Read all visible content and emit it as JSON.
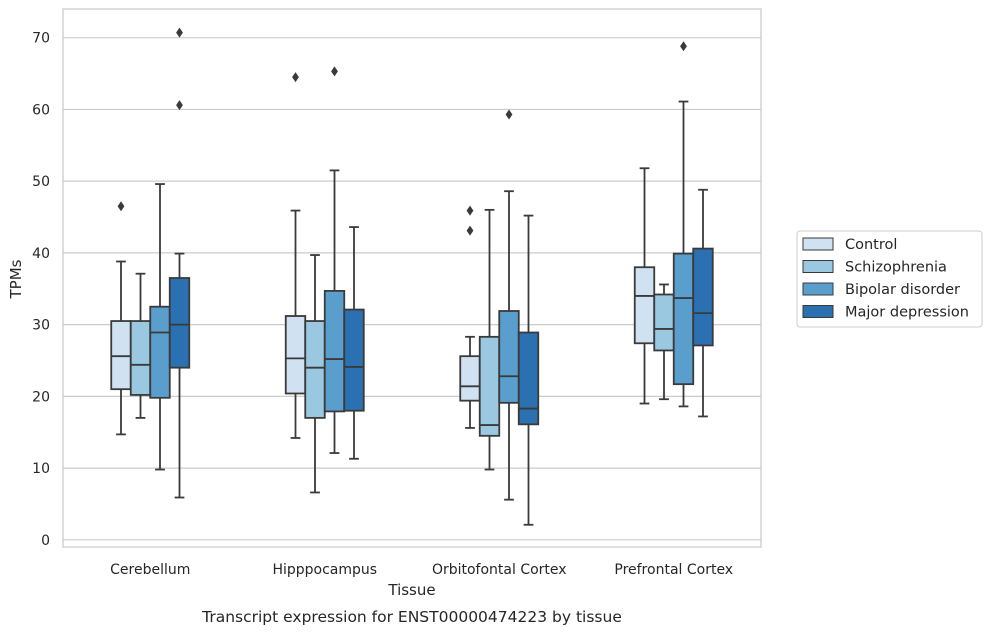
{
  "chart_data": {
    "type": "boxplot",
    "caption": "Transcript expression for ENST00000474223 by tissue",
    "xlabel": "Tissue",
    "ylabel": "TPMs",
    "categories": [
      "Cerebellum",
      "Hipppocampus",
      "Orbitofontal Cortex",
      "Prefrontal Cortex"
    ],
    "ylim": [
      -1,
      74
    ],
    "yticks": [
      0,
      10,
      20,
      30,
      40,
      50,
      60,
      70
    ],
    "grid": "horizontal",
    "legend_position": "right",
    "series": [
      {
        "name": "Control",
        "color": "#d0e2f2",
        "boxes": [
          {
            "whislo": 14.7,
            "q1": 21.0,
            "med": 25.6,
            "q3": 30.5,
            "whishi": 38.8,
            "fliers": [
              46.5
            ]
          },
          {
            "whislo": 14.2,
            "q1": 20.4,
            "med": 25.3,
            "q3": 31.2,
            "whishi": 45.9,
            "fliers": [
              64.5
            ]
          },
          {
            "whislo": 15.6,
            "q1": 19.4,
            "med": 21.4,
            "q3": 25.6,
            "whishi": 28.3,
            "fliers": [
              43.1,
              45.9
            ]
          },
          {
            "whislo": 19.0,
            "q1": 27.4,
            "med": 34.0,
            "q3": 38.0,
            "whishi": 51.8,
            "fliers": []
          }
        ]
      },
      {
        "name": "Schizophrenia",
        "color": "#9ac8e0",
        "boxes": [
          {
            "whislo": 17.0,
            "q1": 20.2,
            "med": 24.4,
            "q3": 30.5,
            "whishi": 37.1,
            "fliers": []
          },
          {
            "whislo": 6.6,
            "q1": 17.0,
            "med": 24.0,
            "q3": 30.5,
            "whishi": 39.7,
            "fliers": []
          },
          {
            "whislo": 9.8,
            "q1": 14.5,
            "med": 16.0,
            "q3": 28.3,
            "whishi": 46.0,
            "fliers": []
          },
          {
            "whislo": 19.6,
            "q1": 26.4,
            "med": 29.4,
            "q3": 34.2,
            "whishi": 35.6,
            "fliers": []
          }
        ]
      },
      {
        "name": "Bipolar disorder",
        "color": "#5a9ecd",
        "boxes": [
          {
            "whislo": 9.8,
            "q1": 19.8,
            "med": 28.9,
            "q3": 32.5,
            "whishi": 49.6,
            "fliers": []
          },
          {
            "whislo": 12.1,
            "q1": 17.9,
            "med": 25.2,
            "q3": 34.7,
            "whishi": 51.5,
            "fliers": [
              65.3
            ]
          },
          {
            "whislo": 5.6,
            "q1": 19.1,
            "med": 22.8,
            "q3": 31.9,
            "whishi": 48.6,
            "fliers": [
              59.3
            ]
          },
          {
            "whislo": 18.6,
            "q1": 21.7,
            "med": 33.7,
            "q3": 39.9,
            "whishi": 61.1,
            "fliers": [
              68.8
            ]
          }
        ]
      },
      {
        "name": "Major depression",
        "color": "#2b70b1",
        "boxes": [
          {
            "whislo": 5.9,
            "q1": 24.0,
            "med": 30.0,
            "q3": 36.5,
            "whishi": 39.9,
            "fliers": [
              60.6,
              70.7
            ]
          },
          {
            "whislo": 11.3,
            "q1": 18.0,
            "med": 24.1,
            "q3": 32.1,
            "whishi": 43.6,
            "fliers": []
          },
          {
            "whislo": 2.1,
            "q1": 16.1,
            "med": 18.3,
            "q3": 28.9,
            "whishi": 45.2,
            "fliers": []
          },
          {
            "whislo": 17.2,
            "q1": 27.1,
            "med": 31.6,
            "q3": 40.6,
            "whishi": 48.8,
            "fliers": []
          }
        ]
      }
    ]
  }
}
